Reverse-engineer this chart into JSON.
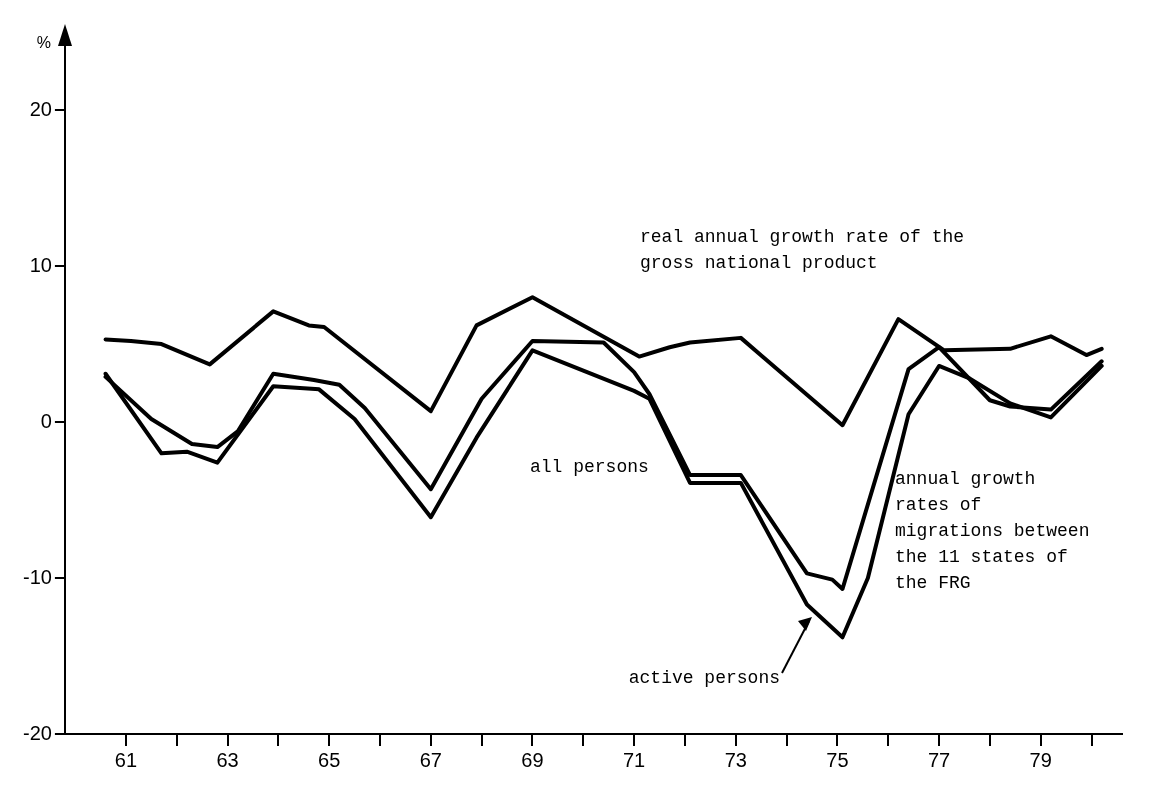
{
  "chart_data": {
    "type": "line",
    "ylabel": "%",
    "xlim": [
      59.8,
      80.6
    ],
    "ylim": [
      -20,
      24.5
    ],
    "xticks": [
      {
        "value": 61,
        "label": "61"
      },
      {
        "value": 62,
        "label": null
      },
      {
        "value": 63,
        "label": "63"
      },
      {
        "value": 64,
        "label": null
      },
      {
        "value": 65,
        "label": "65"
      },
      {
        "value": 66,
        "label": null
      },
      {
        "value": 67,
        "label": "67"
      },
      {
        "value": 68,
        "label": null
      },
      {
        "value": 69,
        "label": "69"
      },
      {
        "value": 70,
        "label": null
      },
      {
        "value": 71,
        "label": "71"
      },
      {
        "value": 72,
        "label": null
      },
      {
        "value": 73,
        "label": "73"
      },
      {
        "value": 74,
        "label": null
      },
      {
        "value": 75,
        "label": "75"
      },
      {
        "value": 76,
        "label": null
      },
      {
        "value": 77,
        "label": "77"
      },
      {
        "value": 78,
        "label": null
      },
      {
        "value": 79,
        "label": "79"
      },
      {
        "value": 80,
        "label": null
      }
    ],
    "yticks": [
      -20,
      -10,
      0,
      10,
      20
    ],
    "grid": false,
    "legend": false,
    "marker": "none",
    "line_style": "solid",
    "series": [
      {
        "color": "#000000",
        "x": [
          60.6,
          61.1,
          61.7,
          62.65,
          63.9,
          64.6,
          64.9,
          67.0,
          67.9,
          69.0,
          71.1,
          71.7,
          72.1,
          73.1,
          75.1,
          76.2,
          77.1,
          78.4,
          79.2,
          79.9,
          80.2
        ],
        "values": [
          5.3,
          5.2,
          5.0,
          3.7,
          7.1,
          6.2,
          6.1,
          0.7,
          6.2,
          8.0,
          4.2,
          4.8,
          5.1,
          5.4,
          -0.2,
          6.6,
          4.6,
          4.7,
          5.5,
          4.3,
          4.7
        ]
      },
      {
        "color": "#000000",
        "x": [
          60.6,
          61.5,
          62.3,
          62.8,
          63.2,
          63.9,
          64.7,
          65.2,
          65.7,
          67.0,
          68.0,
          69.0,
          70.4,
          71.0,
          71.3,
          72.1,
          73.1,
          74.4,
          74.9,
          75.1,
          76.4,
          77.0,
          78.0,
          78.4,
          79.2,
          80.2
        ],
        "values": [
          2.9,
          0.2,
          -1.4,
          -1.6,
          -0.6,
          3.1,
          2.7,
          2.4,
          0.9,
          -4.3,
          1.5,
          5.2,
          5.1,
          3.2,
          1.8,
          -3.4,
          -3.4,
          -9.7,
          -10.1,
          -10.7,
          3.4,
          4.8,
          1.4,
          1.0,
          0.8,
          3.9
        ]
      },
      {
        "color": "#000000",
        "x": [
          60.6,
          61.7,
          62.2,
          62.8,
          63.9,
          64.8,
          65.5,
          67.0,
          67.9,
          69.0,
          71.0,
          71.3,
          72.1,
          73.1,
          74.4,
          75.1,
          75.6,
          76.4,
          77.0,
          77.6,
          78.4,
          79.2,
          80.2
        ],
        "values": [
          3.1,
          -2.0,
          -1.9,
          -2.6,
          2.3,
          2.1,
          0.2,
          -6.1,
          -1.0,
          4.6,
          2.0,
          1.5,
          -3.9,
          -3.9,
          -11.7,
          -13.8,
          -10.0,
          0.5,
          3.6,
          2.8,
          1.2,
          0.3,
          3.6
        ]
      }
    ],
    "annotations": [
      "real annual growth rate of the gross national product",
      "all persons",
      "annual growth rates of migrations between the 11 states of the FRG",
      {
        "text": "active persons",
        "x": 74.5,
        "y": -12.5
      }
    ]
  }
}
